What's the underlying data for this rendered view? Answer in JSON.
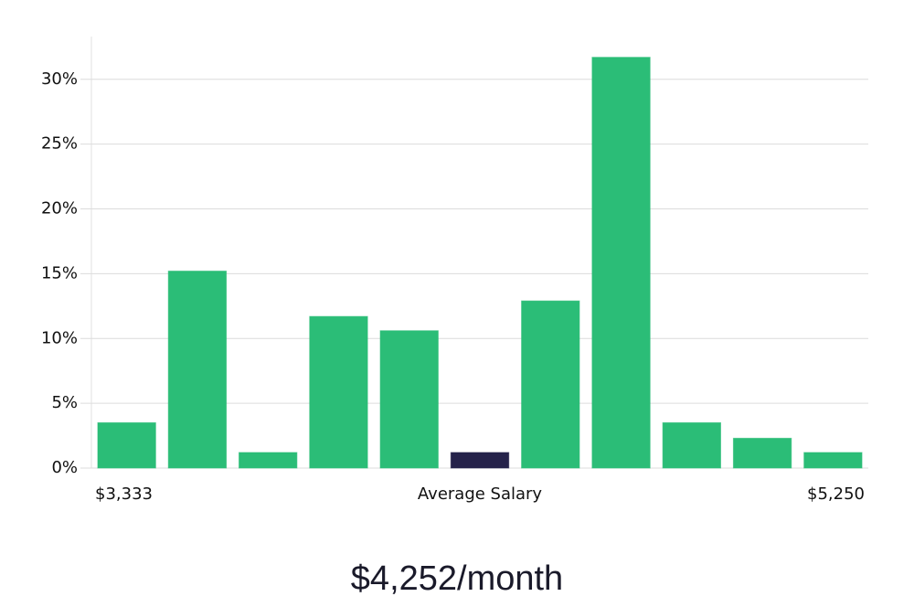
{
  "chart_data": {
    "type": "bar",
    "categories": [
      null,
      null,
      null,
      null,
      null,
      null,
      null,
      null,
      null,
      null,
      null
    ],
    "values": [
      3.5,
      15.2,
      1.2,
      11.7,
      10.6,
      1.2,
      12.9,
      31.7,
      3.5,
      2.3,
      1.2
    ],
    "colors": [
      "#2bbd77",
      "#2bbd77",
      "#2bbd77",
      "#2bbd77",
      "#2bbd77",
      "#25224a",
      "#2bbd77",
      "#2bbd77",
      "#2bbd77",
      "#2bbd77",
      "#2bbd77"
    ],
    "ylim": [
      0,
      33.3
    ],
    "yticks": [
      {
        "value": 0,
        "label": "0%"
      },
      {
        "value": 5,
        "label": "5%"
      },
      {
        "value": 10,
        "label": "10%"
      },
      {
        "value": 15,
        "label": "15%"
      },
      {
        "value": 20,
        "label": "20%"
      },
      {
        "value": 25,
        "label": "25%"
      },
      {
        "value": 30,
        "label": "30%"
      }
    ],
    "grid": true,
    "xlabel": "Average Salary",
    "x_range_labels": [
      "$3,333",
      "$5,250"
    ],
    "footer": "$4,252/month"
  }
}
